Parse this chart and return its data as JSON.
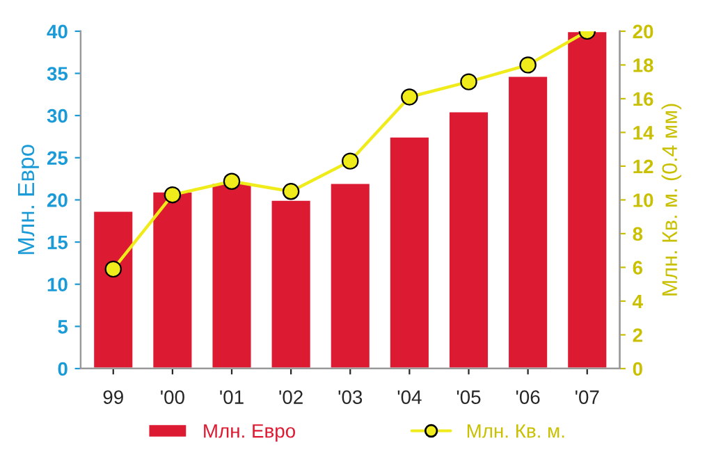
{
  "chart_data": {
    "type": "bar",
    "categories": [
      "99",
      "'00",
      "'01",
      "'02",
      "'03",
      "'04",
      "'05",
      "'06",
      "'07"
    ],
    "series": [
      {
        "name": "Млн. Евро",
        "color": "#dc1a32",
        "values": [
          18.7,
          21,
          22,
          20,
          22,
          27.5,
          30.5,
          34.7,
          40
        ]
      },
      {
        "name": "Млн. Кв. м.",
        "type": "line",
        "axis": "y2",
        "color": "#f0ec1c",
        "marker": "circle",
        "values": [
          5.9,
          10.3,
          11.1,
          10.5,
          12.3,
          16.1,
          17,
          18,
          20
        ]
      }
    ],
    "ylabel": "Млн. Евро",
    "y2label": "Млн. Кв. м. (0.4 мм)",
    "ylim": [
      0,
      40
    ],
    "yticks": [
      0,
      5,
      10,
      15,
      20,
      25,
      30,
      35,
      40
    ],
    "y2lim": [
      0,
      20
    ],
    "y2ticks": [
      0,
      2,
      4,
      6,
      8,
      10,
      12,
      14,
      16,
      18,
      20
    ],
    "legend": "bottom",
    "grid": false
  }
}
